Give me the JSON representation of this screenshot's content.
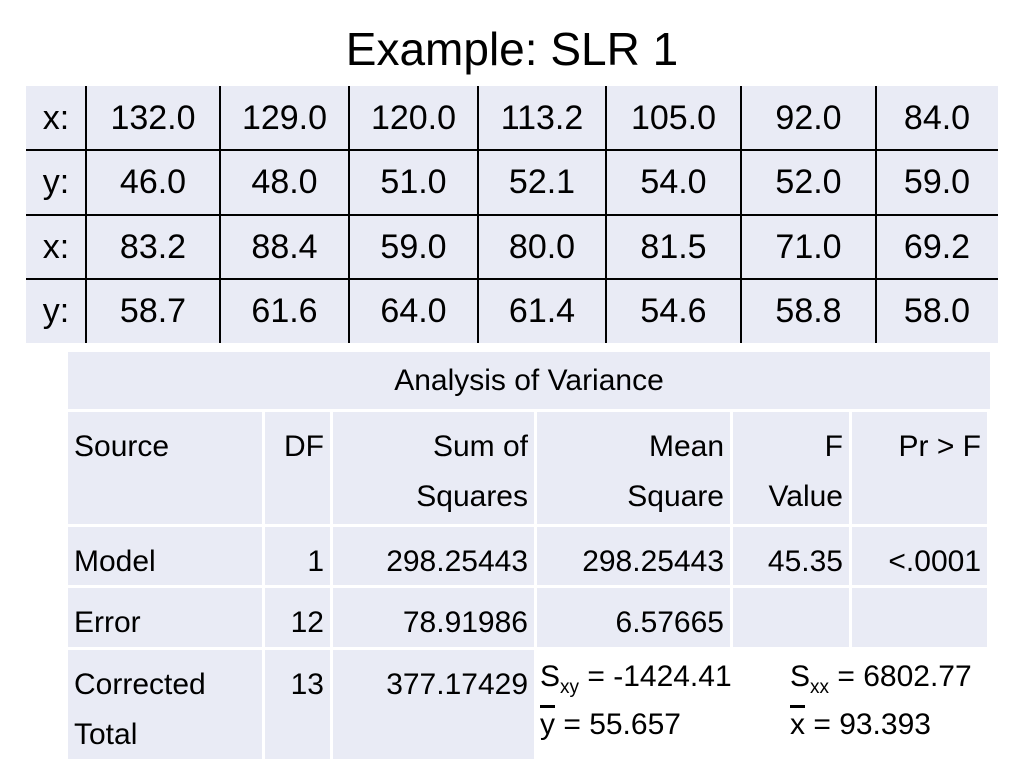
{
  "title": "Example: SLR 1",
  "data_table": {
    "rows": [
      [
        "x:",
        "132.0",
        "129.0",
        "120.0",
        "113.2",
        "105.0",
        "92.0",
        "84.0"
      ],
      [
        "y:",
        "46.0",
        "48.0",
        "51.0",
        "52.1",
        "54.0",
        "52.0",
        "59.0"
      ],
      [
        "x:",
        "83.2",
        "88.4",
        "59.0",
        "80.0",
        "81.5",
        "71.0",
        "69.2"
      ],
      [
        "y:",
        "58.7",
        "61.6",
        "64.0",
        "61.4",
        "54.6",
        "58.8",
        "58.0"
      ]
    ]
  },
  "anova": {
    "title": "Analysis of Variance",
    "header": [
      [
        "Source"
      ],
      [
        "DF"
      ],
      [
        "Sum of",
        "Squares"
      ],
      [
        "Mean",
        "Square"
      ],
      [
        "F",
        "Value"
      ],
      [
        "Pr > F"
      ]
    ],
    "rows": [
      [
        [
          "Model"
        ],
        [
          "1"
        ],
        [
          "298.25443"
        ],
        [
          "298.25443"
        ],
        [
          "45.35"
        ],
        [
          "<.0001"
        ]
      ],
      [
        [
          "Error"
        ],
        [
          "12"
        ],
        [
          "78.91986"
        ],
        [
          "6.57665"
        ]
      ],
      [
        [
          "Corrected",
          "Total"
        ],
        [
          "13"
        ],
        [
          "377.17429"
        ]
      ]
    ]
  },
  "stats": [
    {
      "symbol": "S",
      "subscript": "xy",
      "text": " = -1424.41"
    },
    {
      "symbol": "S",
      "subscript": "xx",
      "text": " = 6802.77"
    },
    {
      "symbol": "y",
      "text": " = 55.657"
    },
    {
      "symbol": "x",
      "text": " = 93.393"
    }
  ]
}
